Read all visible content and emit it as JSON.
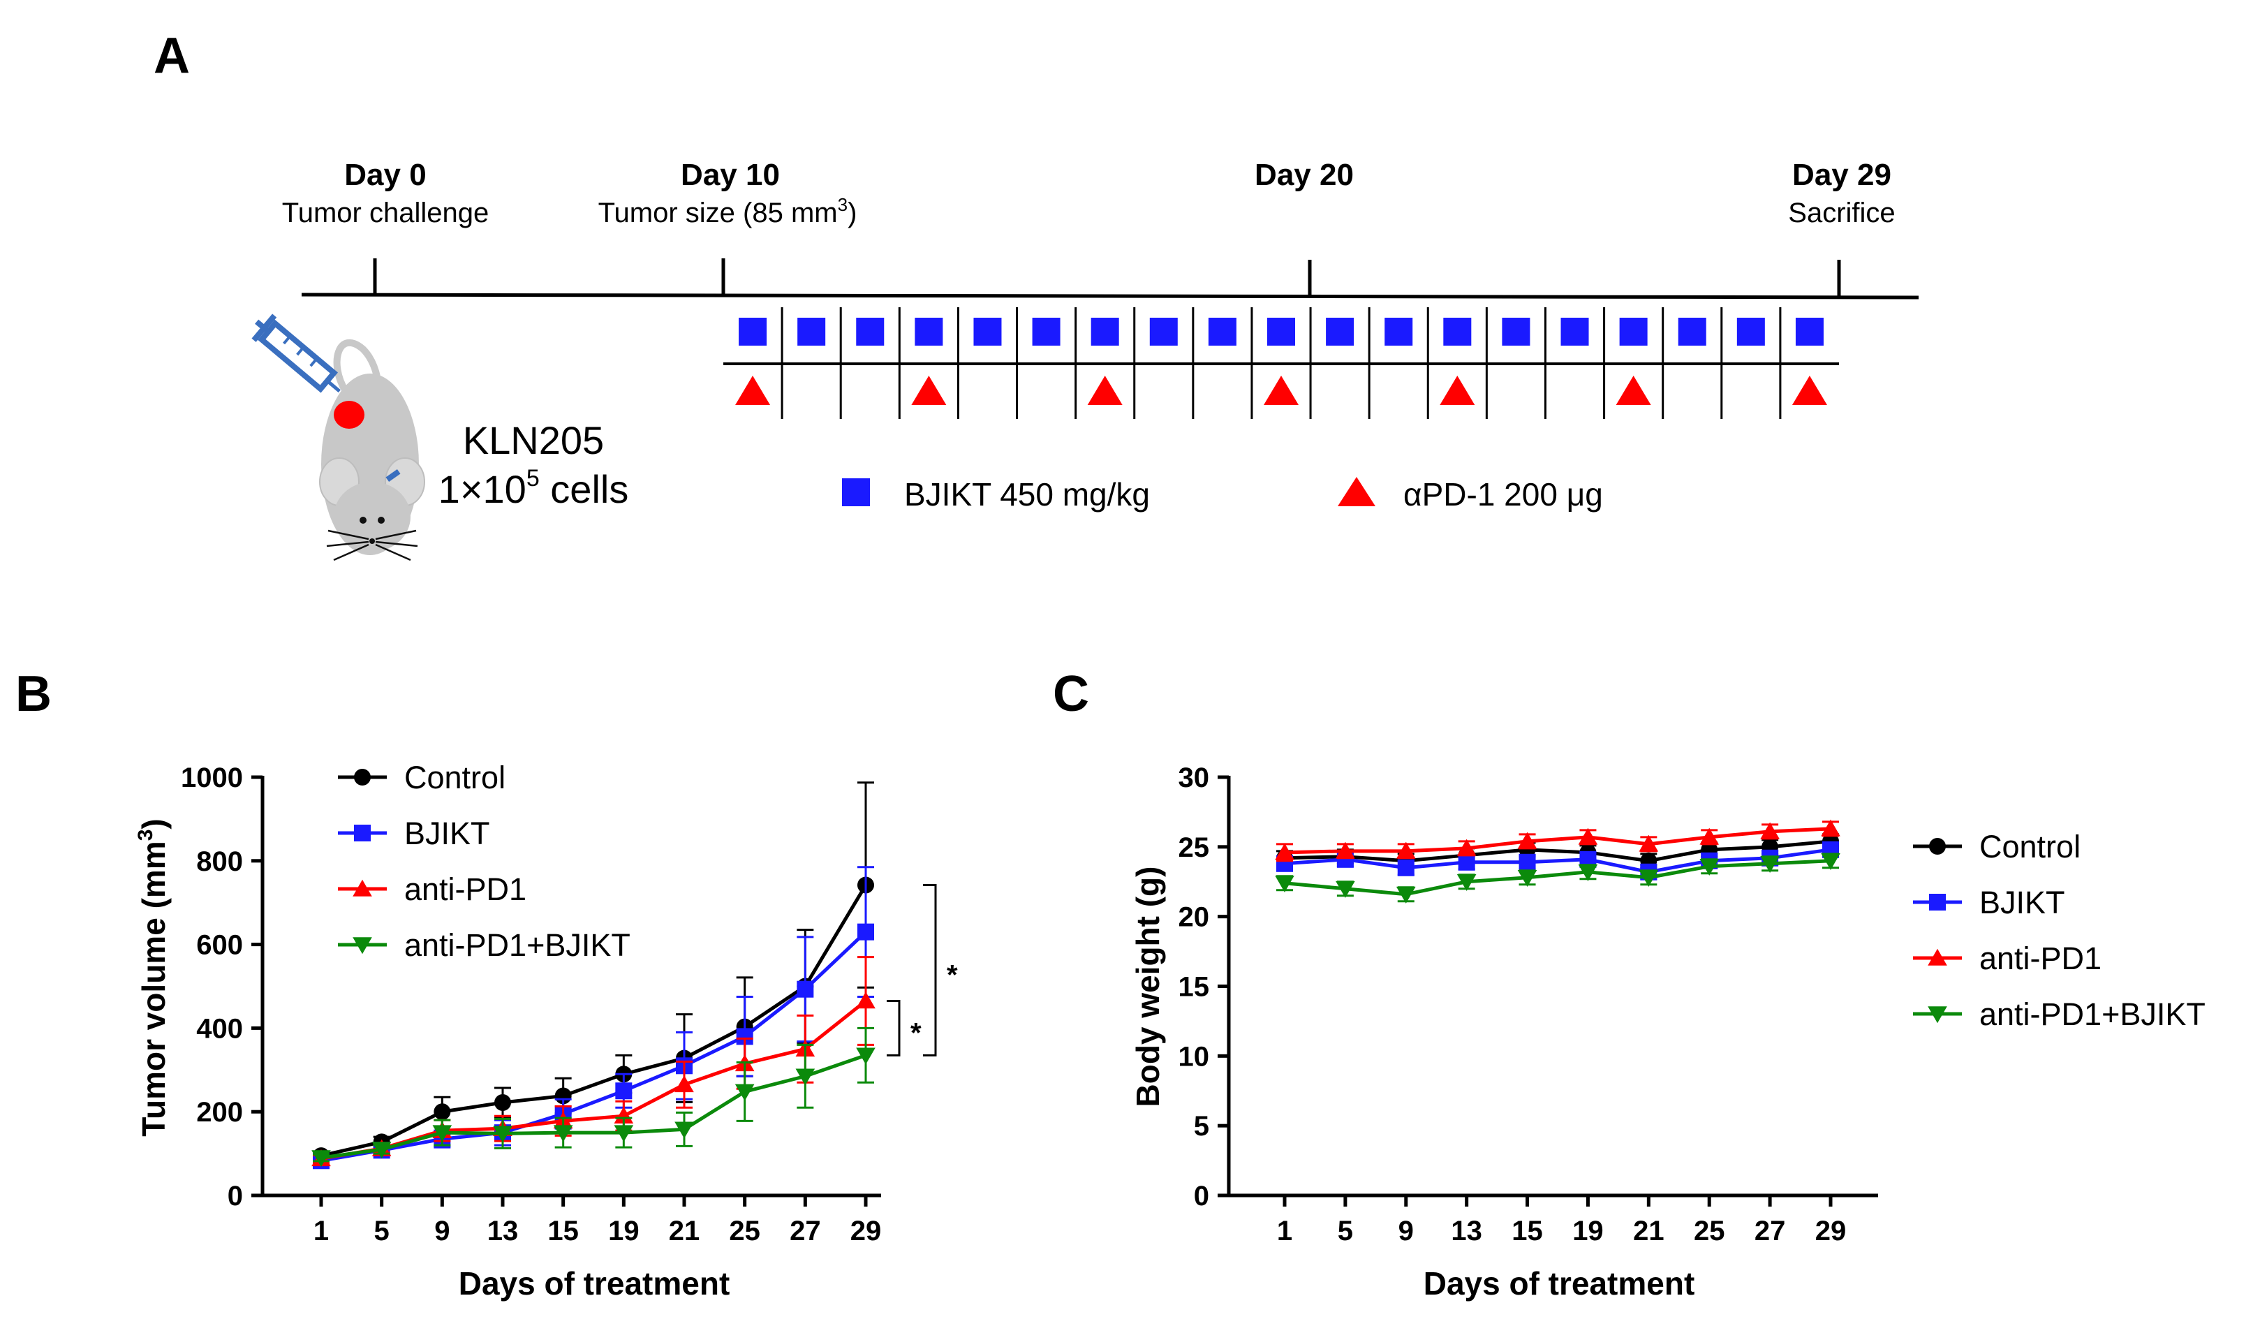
{
  "panels": {
    "a": "A",
    "b": "B",
    "c": "C"
  },
  "timeline": {
    "milestones": [
      {
        "day": "Day 0",
        "desc": "Tumor challenge",
        "desc_sup": ""
      },
      {
        "day": "Day 10",
        "desc": "Tumor size (85 mm",
        "desc_sup": "3",
        "desc_suffix": ")"
      },
      {
        "day": "Day 20",
        "desc": "",
        "desc_sup": ""
      },
      {
        "day": "Day 29",
        "desc": "Sacrifice",
        "desc_sup": ""
      }
    ],
    "cell_line": "KLN205",
    "dose_prefix": "1×10",
    "dose_sup": "5",
    "dose_suffix": " cells",
    "bjikt_days_count": 19,
    "apd1_slots": [
      0,
      3,
      6,
      9,
      12,
      15,
      18
    ],
    "legend": [
      {
        "shape": "square",
        "label": "BJIKT 450 mg/kg",
        "color": "#1a1aff"
      },
      {
        "shape": "triangle",
        "label": "αPD-1 200 μg",
        "color": "#ff0000"
      }
    ],
    "colors": {
      "mouse": "#c8c8c8",
      "tumor": "#ff0000",
      "syringe": "#3a6fbf"
    }
  },
  "chart_data": [
    {
      "type": "line",
      "panel": "B",
      "title": "",
      "xlabel": "Days of treatment",
      "ylabel": "Tumor volume (mm",
      "ylabel_sup": "3",
      "ylabel_suffix": ")",
      "categories": [
        "1",
        "5",
        "9",
        "13",
        "15",
        "19",
        "21",
        "25",
        "27",
        "29"
      ],
      "ylim": [
        0,
        1000
      ],
      "yticks": [
        "0",
        "200",
        "400",
        "600",
        "800",
        "1000"
      ],
      "series": [
        {
          "name": "Control",
          "color": "#000000",
          "marker": "circle",
          "values": [
            95,
            128,
            200,
            222,
            238,
            290,
            328,
            403,
            500,
            742
          ],
          "errors": [
            10,
            12,
            35,
            35,
            42,
            45,
            105,
            118,
            135,
            245
          ]
        },
        {
          "name": "BJIKT",
          "color": "#1a1aff",
          "marker": "square",
          "values": [
            83,
            108,
            135,
            150,
            195,
            250,
            310,
            380,
            493,
            630
          ],
          "errors": [
            8,
            10,
            20,
            30,
            35,
            40,
            80,
            95,
            125,
            155
          ]
        },
        {
          "name": "anti-PD1",
          "color": "#ff0000",
          "marker": "triangle-up",
          "values": [
            88,
            112,
            155,
            160,
            178,
            190,
            265,
            315,
            350,
            465
          ],
          "errors": [
            8,
            10,
            25,
            30,
            35,
            35,
            55,
            60,
            80,
            105
          ]
        },
        {
          "name": "anti-PD1+BJIKT",
          "color": "#0b8a0b",
          "marker": "triangle-down",
          "values": [
            90,
            110,
            150,
            148,
            150,
            150,
            158,
            248,
            285,
            335
          ],
          "errors": [
            8,
            10,
            30,
            35,
            35,
            35,
            40,
            70,
            75,
            65
          ]
        }
      ],
      "significance": [
        {
          "label": "*",
          "between": [
            "anti-PD1+BJIKT",
            "anti-PD1"
          ]
        },
        {
          "label": "*",
          "between": [
            "anti-PD1+BJIKT",
            "Control"
          ]
        }
      ],
      "legend_position": "top-left"
    },
    {
      "type": "line",
      "panel": "C",
      "title": "",
      "xlabel": "Days of treatment",
      "ylabel": "Body weight (g)",
      "ylabel_sup": "",
      "ylabel_suffix": "",
      "categories": [
        "1",
        "5",
        "9",
        "13",
        "15",
        "19",
        "21",
        "25",
        "27",
        "29"
      ],
      "ylim": [
        0,
        30
      ],
      "yticks": [
        "0",
        "5",
        "10",
        "15",
        "20",
        "25",
        "30"
      ],
      "series": [
        {
          "name": "Control",
          "color": "#000000",
          "marker": "circle",
          "values": [
            24.2,
            24.3,
            24.0,
            24.4,
            24.8,
            24.6,
            24.0,
            24.8,
            25.0,
            25.4
          ],
          "errors": [
            0.5,
            0.5,
            0.5,
            0.5,
            0.5,
            0.5,
            0.5,
            0.5,
            0.5,
            0.5
          ]
        },
        {
          "name": "BJIKT",
          "color": "#1a1aff",
          "marker": "square",
          "values": [
            23.8,
            24.1,
            23.5,
            23.9,
            23.9,
            24.1,
            23.2,
            24.0,
            24.2,
            24.8
          ],
          "errors": [
            0.5,
            0.5,
            0.5,
            0.5,
            0.5,
            0.5,
            0.5,
            0.5,
            0.5,
            0.5
          ]
        },
        {
          "name": "anti-PD1",
          "color": "#ff0000",
          "marker": "triangle-up",
          "values": [
            24.6,
            24.7,
            24.7,
            24.9,
            25.4,
            25.7,
            25.2,
            25.7,
            26.1,
            26.3
          ],
          "errors": [
            0.6,
            0.5,
            0.5,
            0.5,
            0.5,
            0.5,
            0.5,
            0.5,
            0.5,
            0.5
          ]
        },
        {
          "name": "anti-PD1+BJIKT",
          "color": "#0b8a0b",
          "marker": "triangle-down",
          "values": [
            22.4,
            22.0,
            21.6,
            22.5,
            22.8,
            23.2,
            22.8,
            23.6,
            23.8,
            24.0
          ],
          "errors": [
            0.5,
            0.5,
            0.5,
            0.5,
            0.5,
            0.5,
            0.5,
            0.5,
            0.5,
            0.5
          ]
        }
      ],
      "legend_position": "right"
    }
  ]
}
